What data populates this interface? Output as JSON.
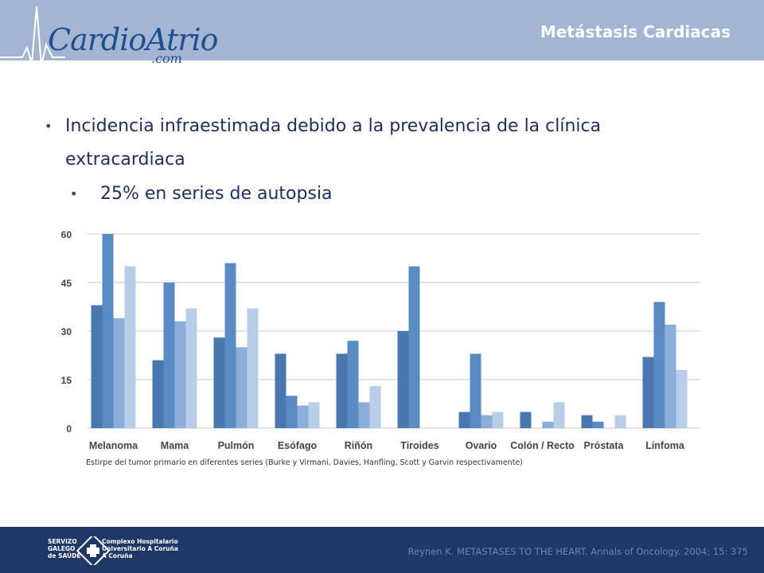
{
  "header": {
    "logo_main": "CardioAtrio",
    "logo_sub": ".com",
    "title": "Metástasis Cardiacas"
  },
  "bullets": {
    "b1_line1": "Incidencia infraestimada debido a la prevalencia de la clínica",
    "b1_line2": "extracardiaca",
    "b2": "25% en series de autopsia"
  },
  "caption": "Estirpe del tumor primario en diferentes series (Burke y Virmani, Davies, Hanfling, Scott y Garvin respectivamente)",
  "footer": {
    "org_line1": "SERVIZO",
    "org_line2": "GALEGO",
    "org_line3": "de SAÚDE",
    "hosp_line1": "Complexo Hospitalario",
    "hosp_line2": "Universitario A Coruña",
    "hosp_line3": "A Coruña",
    "reference": "Reynen K. METASTASES TO THE HEART. Annals of Oncology. 2004; 15: 375"
  },
  "colors": {
    "header_bg": "#a3b5d2",
    "footer_bg": "#1f3868",
    "series": [
      "#4a77ad",
      "#5b8bc4",
      "#8aaed8",
      "#b8cde7"
    ]
  },
  "chart_data": {
    "type": "bar",
    "categories": [
      "Melanoma",
      "Mama",
      "Pulmón",
      "Esófago",
      "Riñón",
      "Tiroides",
      "Ovario",
      "Colón / Recto",
      "Próstata",
      "Linfoma"
    ],
    "series": [
      {
        "values": [
          38,
          21,
          28,
          23,
          23,
          30,
          5,
          5,
          4,
          22
        ]
      },
      {
        "values": [
          60,
          45,
          51,
          10,
          27,
          50,
          23,
          0,
          2,
          39
        ]
      },
      {
        "values": [
          34,
          33,
          25,
          7,
          8,
          0,
          4,
          2,
          0,
          32
        ]
      },
      {
        "values": [
          50,
          37,
          37,
          8,
          13,
          0,
          5,
          8,
          4,
          18
        ]
      }
    ],
    "yticks": [
      0,
      15,
      30,
      45,
      60
    ],
    "ylim": [
      0,
      60
    ],
    "grid": true,
    "legend": "none"
  }
}
